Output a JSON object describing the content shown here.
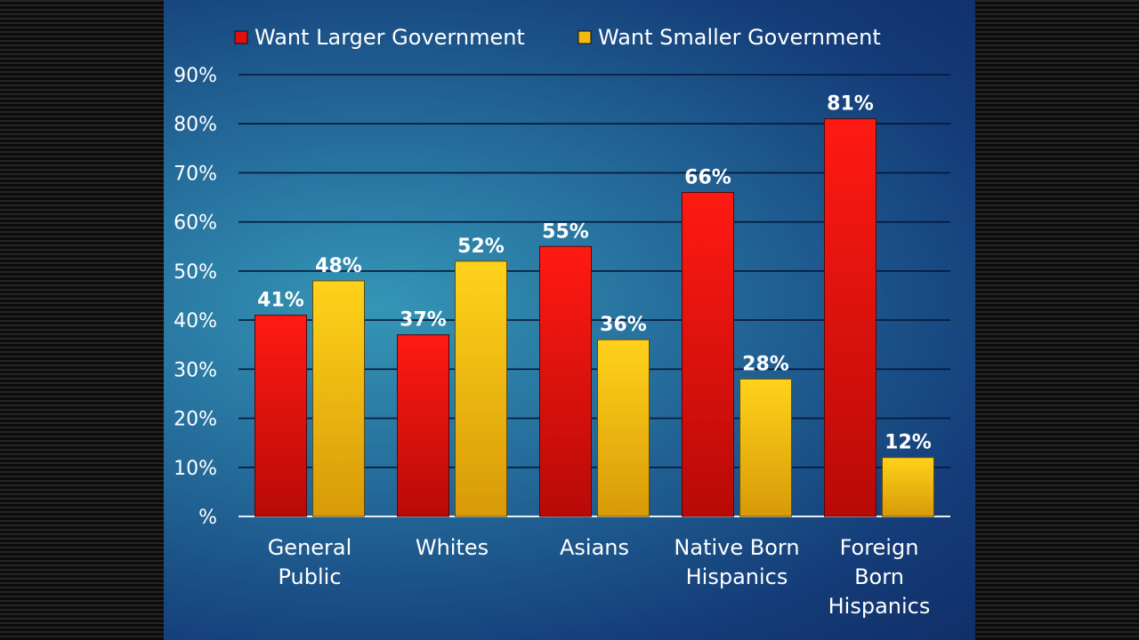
{
  "chart_data": {
    "type": "bar",
    "categories": [
      [
        "General",
        "Public"
      ],
      [
        "Whites"
      ],
      [
        "Asians"
      ],
      [
        "Native Born",
        "Hispanics"
      ],
      [
        "Foreign",
        "Born",
        "Hispanics"
      ]
    ],
    "series": [
      {
        "name": "Want Larger Government",
        "color": "#e0100c",
        "values": [
          41,
          37,
          55,
          66,
          81
        ],
        "labels": [
          "41%",
          "37%",
          "55%",
          "66%",
          "81%"
        ]
      },
      {
        "name": "Want Smaller Government",
        "color": "#f2bc0c",
        "values": [
          48,
          52,
          36,
          28,
          12
        ],
        "labels": [
          "48%",
          "52%",
          "36%",
          "28%",
          "12%"
        ]
      }
    ],
    "ylim": [
      0,
      90
    ],
    "yticks": [
      0,
      10,
      20,
      30,
      40,
      50,
      60,
      70,
      80,
      90
    ],
    "ytick_labels": [
      "%",
      "10%",
      "20%",
      "30%",
      "40%",
      "50%",
      "60%",
      "70%",
      "80%",
      "90%"
    ],
    "grid": true,
    "legend_position": "top"
  }
}
